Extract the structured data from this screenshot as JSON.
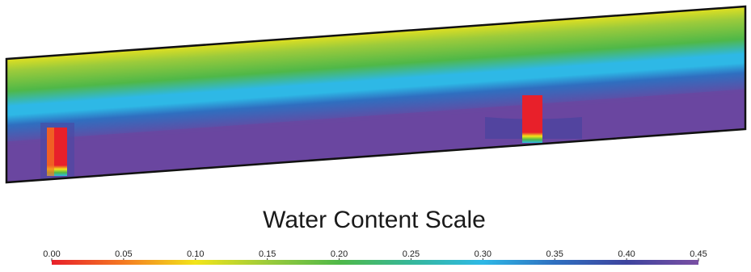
{
  "legend": {
    "title": "Water Content Scale",
    "ticks": [
      "0.00",
      "0.05",
      "0.10",
      "0.15",
      "0.20",
      "0.25",
      "0.30",
      "0.35",
      "0.40",
      "0.45"
    ],
    "min": 0.0,
    "max": 0.45,
    "color_stops": [
      {
        "value": 0.0,
        "color": "#e8202a"
      },
      {
        "value": 0.05,
        "color": "#f47a22"
      },
      {
        "value": 0.1,
        "color": "#f2e51a"
      },
      {
        "value": 0.15,
        "color": "#9ccb3b"
      },
      {
        "value": 0.2,
        "color": "#4fb848"
      },
      {
        "value": 0.25,
        "color": "#36b79a"
      },
      {
        "value": 0.3,
        "color": "#2eb8e6"
      },
      {
        "value": 0.35,
        "color": "#2f6fc0"
      },
      {
        "value": 0.4,
        "color": "#3e449e"
      },
      {
        "value": 0.45,
        "color": "#7a4fa3"
      }
    ]
  },
  "domain_colors": {
    "top": "#f2e51a",
    "upper": "#9ccb3b",
    "middle": "#4fb848",
    "transition": "#2eb8e6",
    "lower": "#2f6fc0",
    "bottom": "#6a47a0",
    "outline": "#111111"
  },
  "wet_zones": [
    {
      "name": "left-wet-column",
      "core_color": "#e8202a",
      "edge_color": "#f47a22"
    },
    {
      "name": "right-wet-column",
      "core_color": "#e8202a",
      "edge_color": "#f47a22"
    }
  ]
}
